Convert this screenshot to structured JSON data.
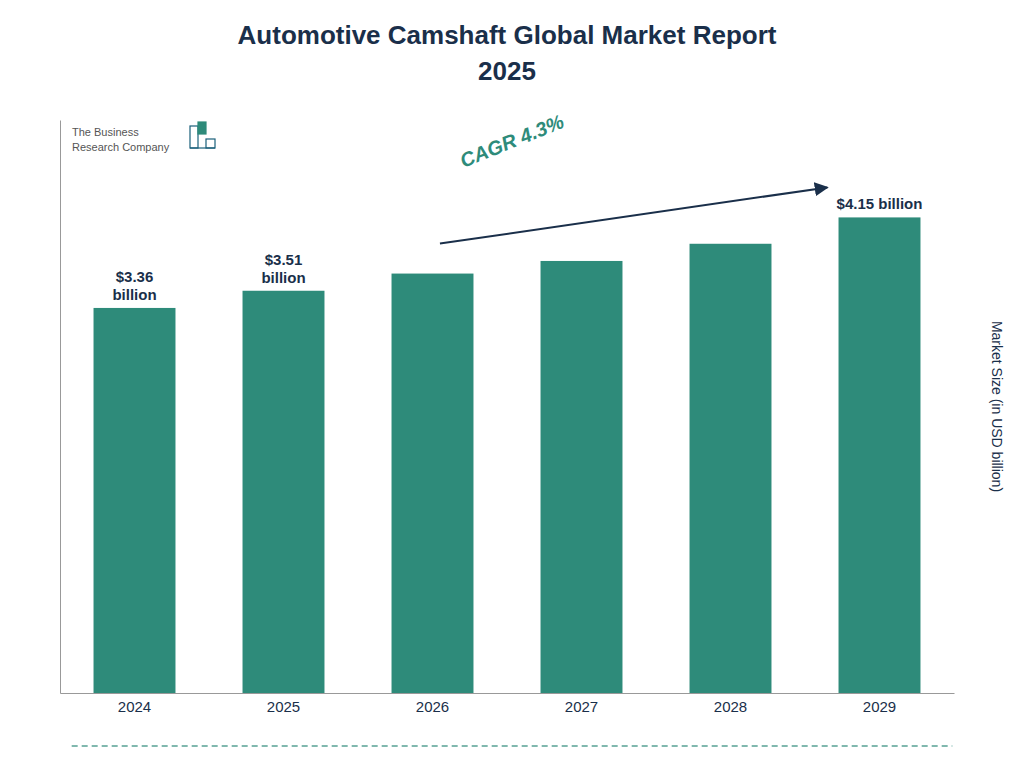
{
  "chart_data": {
    "type": "bar",
    "title": "Automotive Camshaft Global Market Report",
    "subtitle": "2025",
    "y_label": "Market Size (in USD billion)",
    "categories": [
      "2024",
      "2025",
      "2026",
      "2027",
      "2028",
      "2029"
    ],
    "values": [
      3.36,
      3.51,
      3.66,
      3.77,
      3.92,
      4.15
    ],
    "value_labels": [
      "$3.36\nbillion",
      "$3.51\nbillion",
      null,
      null,
      null,
      "$4.15 billion"
    ],
    "color": "#2e8b7a",
    "ylim": [
      0,
      5.0
    ],
    "tick_labels": "x",
    "grid": false,
    "annotations": [
      {
        "text": "CAGR 4.3%"
      },
      {
        "text": "The Business\nResearch Company"
      }
    ]
  }
}
